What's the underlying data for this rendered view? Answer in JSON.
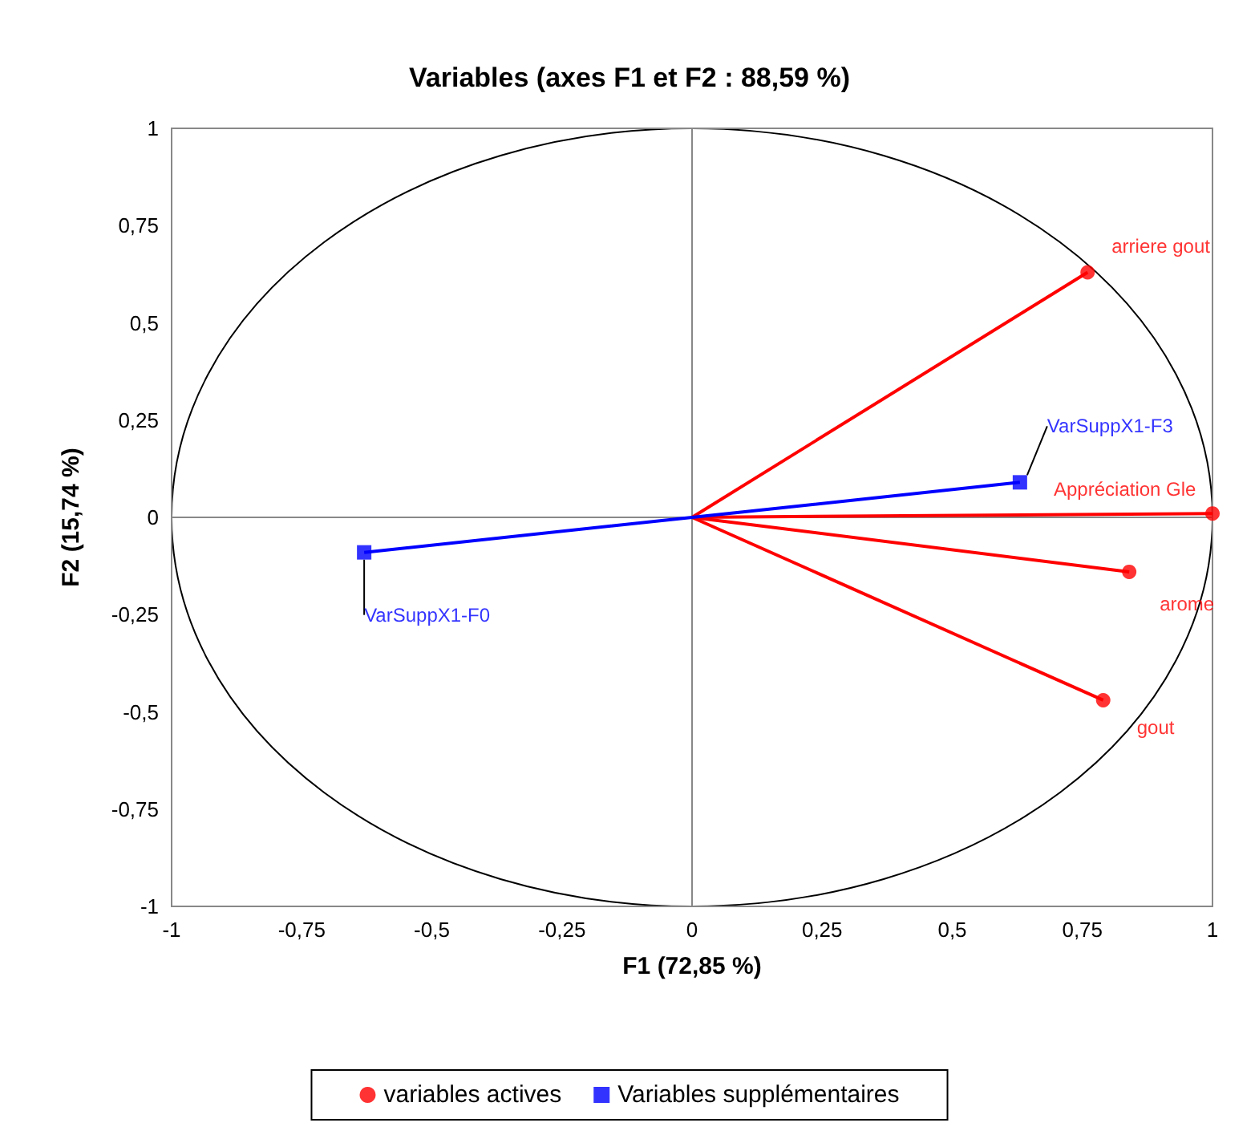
{
  "chart_data": {
    "type": "scatter",
    "title": "Variables (axes F1 et F2 : 88,59 %)",
    "xlabel": "F1 (72,85 %)",
    "ylabel": "F2 (15,74 %)",
    "series": [
      {
        "type": "line",
        "color": "#ff0000",
        "marker": "none",
        "x": [
          0,
          0.76
        ],
        "values": [
          0,
          0.63
        ]
      },
      {
        "type": "line",
        "color": "#ff0000",
        "marker": "none",
        "x": [
          0,
          1.0
        ],
        "values": [
          0,
          0.01
        ]
      },
      {
        "type": "line",
        "color": "#ff0000",
        "marker": "none",
        "x": [
          0,
          0.84
        ],
        "values": [
          0,
          -0.14
        ]
      },
      {
        "type": "line",
        "color": "#ff0000",
        "marker": "none",
        "x": [
          0,
          0.79
        ],
        "values": [
          0,
          -0.47
        ]
      },
      {
        "type": "line",
        "color": "#0000ff",
        "marker": "none",
        "x": [
          -0.63,
          0,
          0.63
        ],
        "values": [
          -0.09,
          0,
          0.09
        ]
      },
      {
        "name": "variables actives",
        "color": "#ff0000",
        "marker": "circle",
        "x": [
          0.76,
          1.0,
          0.84,
          0.79
        ],
        "values": [
          0.63,
          0.01,
          -0.14,
          -0.47
        ]
      },
      {
        "name": "Variables supplémentaires",
        "color": "#0000ff",
        "marker": "square",
        "x": [
          0.63,
          -0.63
        ],
        "values": [
          0.09,
          -0.09
        ]
      }
    ],
    "annotations": [
      {
        "text": "arriere gout",
        "x": 0.76,
        "y": 0.63
      },
      {
        "text": "Appréciation Gle",
        "x": 1.0,
        "y": 0.01
      },
      {
        "text": "arome",
        "x": 0.84,
        "y": -0.14
      },
      {
        "text": "gout",
        "x": 0.79,
        "y": -0.47
      },
      {
        "text": "VarSuppX1-F3",
        "x": 0.63,
        "y": 0.09
      },
      {
        "text": "VarSuppX1-F0",
        "x": -0.63,
        "y": -0.09
      }
    ],
    "xlim": [
      -1,
      1
    ],
    "ylim": [
      -1,
      1
    ],
    "xticks": [
      -1,
      {
        "value": -0.75,
        "label": "-0,75"
      },
      {
        "value": -0.5,
        "label": "-0,5"
      },
      {
        "value": -0.25,
        "label": "-0,25"
      },
      0,
      {
        "value": 0.25,
        "label": "0,25"
      },
      {
        "value": 0.5,
        "label": "0,5"
      },
      {
        "value": 0.75,
        "label": "0,75"
      },
      1
    ],
    "yticks": [
      -1,
      {
        "value": -0.75,
        "label": "-0,75"
      },
      {
        "value": -0.5,
        "label": "-0,5"
      },
      {
        "value": -0.25,
        "label": "-0,25"
      },
      0,
      {
        "value": 0.25,
        "label": "0,25"
      },
      {
        "value": 0.5,
        "label": "0,5"
      },
      {
        "value": 0.75,
        "label": "0,75"
      },
      1
    ],
    "legend": "bottom"
  }
}
